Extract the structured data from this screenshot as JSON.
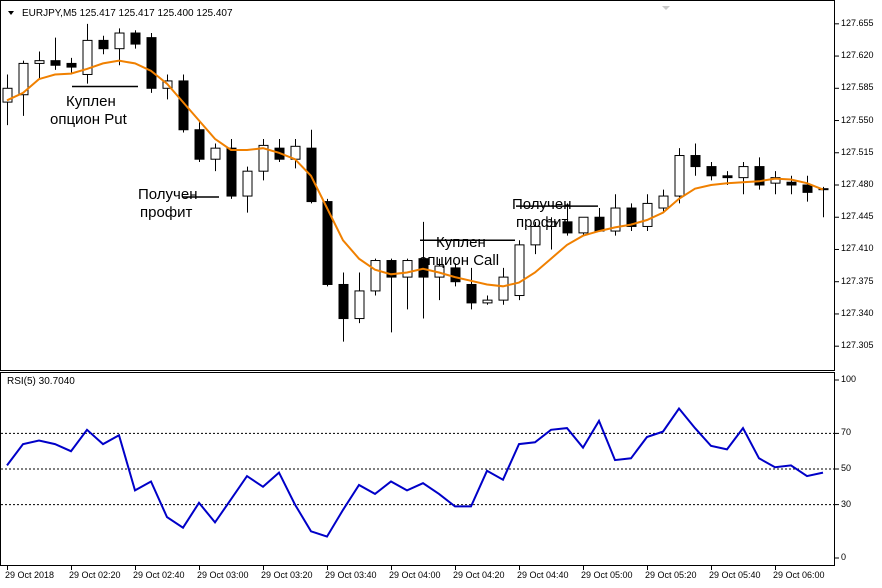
{
  "window": {
    "symbol_bar": "EURJPY,M5  125.417 125.417 125.400 125.407",
    "rsi_bar": "RSI(5) 30.7040"
  },
  "annotations": {
    "put_line1": "Куплен",
    "put_line2": "опцион Put",
    "tp1_line1": "Получен",
    "tp1_line2": "профит",
    "call_line1": "Куплен",
    "call_line2": "опцион Call",
    "tp2_line1": "Получен",
    "tp2_line2": "профит"
  },
  "colors": {
    "ma_line": "#f08000",
    "rsi_line": "#0000c8",
    "bull_body": "#ffffff",
    "bear_body": "#000000",
    "frame": "#000000",
    "levels": "#000000"
  },
  "chart_data": [
    {
      "type": "candlestick",
      "title": "EURJPY,M5",
      "ylim": [
        127.29,
        127.67
      ],
      "yticks": [
        "127.655",
        "127.620",
        "127.585",
        "127.550",
        "127.515",
        "127.480",
        "127.445",
        "127.410",
        "127.375",
        "127.340",
        "127.305"
      ],
      "xticks": [
        "29 Oct 2018",
        "29 Oct 02:20",
        "29 Oct 02:40",
        "29 Oct 03:00",
        "29 Oct 03:20",
        "29 Oct 03:40",
        "29 Oct 04:00",
        "29 Oct 04:20",
        "29 Oct 04:40",
        "29 Oct 05:00",
        "29 Oct 05:20",
        "29 Oct 05:40",
        "29 Oct 06:00"
      ],
      "grid": false,
      "candles": [
        {
          "o": 127.57,
          "h": 127.6,
          "l": 127.545,
          "c": 127.585
        },
        {
          "o": 127.578,
          "h": 127.615,
          "l": 127.555,
          "c": 127.612
        },
        {
          "o": 127.612,
          "h": 127.625,
          "l": 127.595,
          "c": 127.615
        },
        {
          "o": 127.615,
          "h": 127.64,
          "l": 127.605,
          "c": 127.61
        },
        {
          "o": 127.612,
          "h": 127.618,
          "l": 127.6,
          "c": 127.608
        },
        {
          "o": 127.6,
          "h": 127.655,
          "l": 127.59,
          "c": 127.637
        },
        {
          "o": 127.637,
          "h": 127.642,
          "l": 127.622,
          "c": 127.628
        },
        {
          "o": 127.628,
          "h": 127.65,
          "l": 127.61,
          "c": 127.645
        },
        {
          "o": 127.645,
          "h": 127.648,
          "l": 127.628,
          "c": 127.633
        },
        {
          "o": 127.64,
          "h": 127.645,
          "l": 127.58,
          "c": 127.585
        },
        {
          "o": 127.585,
          "h": 127.6,
          "l": 127.573,
          "c": 127.593
        },
        {
          "o": 127.593,
          "h": 127.6,
          "l": 127.537,
          "c": 127.54
        },
        {
          "o": 127.54,
          "h": 127.55,
          "l": 127.505,
          "c": 127.508
        },
        {
          "o": 127.508,
          "h": 127.525,
          "l": 127.495,
          "c": 127.52
        },
        {
          "o": 127.52,
          "h": 127.53,
          "l": 127.465,
          "c": 127.468
        },
        {
          "o": 127.468,
          "h": 127.5,
          "l": 127.45,
          "c": 127.495
        },
        {
          "o": 127.495,
          "h": 127.53,
          "l": 127.485,
          "c": 127.523
        },
        {
          "o": 127.52,
          "h": 127.53,
          "l": 127.505,
          "c": 127.508
        },
        {
          "o": 127.508,
          "h": 127.53,
          "l": 127.498,
          "c": 127.522
        },
        {
          "o": 127.52,
          "h": 127.54,
          "l": 127.46,
          "c": 127.462
        },
        {
          "o": 127.462,
          "h": 127.465,
          "l": 127.37,
          "c": 127.372
        },
        {
          "o": 127.372,
          "h": 127.385,
          "l": 127.31,
          "c": 127.335
        },
        {
          "o": 127.335,
          "h": 127.385,
          "l": 127.33,
          "c": 127.365
        },
        {
          "o": 127.365,
          "h": 127.4,
          "l": 127.36,
          "c": 127.398
        },
        {
          "o": 127.398,
          "h": 127.4,
          "l": 127.32,
          "c": 127.38
        },
        {
          "o": 127.38,
          "h": 127.4,
          "l": 127.345,
          "c": 127.398
        },
        {
          "o": 127.4,
          "h": 127.44,
          "l": 127.335,
          "c": 127.38
        },
        {
          "o": 127.38,
          "h": 127.4,
          "l": 127.355,
          "c": 127.392
        },
        {
          "o": 127.39,
          "h": 127.395,
          "l": 127.37,
          "c": 127.375
        },
        {
          "o": 127.372,
          "h": 127.39,
          "l": 127.345,
          "c": 127.352
        },
        {
          "o": 127.352,
          "h": 127.36,
          "l": 127.35,
          "c": 127.355
        },
        {
          "o": 127.355,
          "h": 127.39,
          "l": 127.35,
          "c": 127.38
        },
        {
          "o": 127.36,
          "h": 127.42,
          "l": 127.355,
          "c": 127.415
        },
        {
          "o": 127.415,
          "h": 127.44,
          "l": 127.405,
          "c": 127.435
        },
        {
          "o": 127.435,
          "h": 127.445,
          "l": 127.41,
          "c": 127.44
        },
        {
          "o": 127.44,
          "h": 127.46,
          "l": 127.425,
          "c": 127.428
        },
        {
          "o": 127.428,
          "h": 127.445,
          "l": 127.425,
          "c": 127.445
        },
        {
          "o": 127.445,
          "h": 127.455,
          "l": 127.43,
          "c": 127.43
        },
        {
          "o": 127.43,
          "h": 127.47,
          "l": 127.425,
          "c": 127.455
        },
        {
          "o": 127.455,
          "h": 127.46,
          "l": 127.43,
          "c": 127.435
        },
        {
          "o": 127.435,
          "h": 127.47,
          "l": 127.43,
          "c": 127.46
        },
        {
          "o": 127.455,
          "h": 127.475,
          "l": 127.45,
          "c": 127.468
        },
        {
          "o": 127.468,
          "h": 127.52,
          "l": 127.46,
          "c": 127.512
        },
        {
          "o": 127.512,
          "h": 127.525,
          "l": 127.49,
          "c": 127.5
        },
        {
          "o": 127.5,
          "h": 127.505,
          "l": 127.485,
          "c": 127.49
        },
        {
          "o": 127.49,
          "h": 127.495,
          "l": 127.48,
          "c": 127.488
        },
        {
          "o": 127.488,
          "h": 127.505,
          "l": 127.47,
          "c": 127.5
        },
        {
          "o": 127.5,
          "h": 127.51,
          "l": 127.475,
          "c": 127.48
        },
        {
          "o": 127.482,
          "h": 127.495,
          "l": 127.47,
          "c": 127.488
        },
        {
          "o": 127.483,
          "h": 127.49,
          "l": 127.47,
          "c": 127.48
        },
        {
          "o": 127.48,
          "h": 127.49,
          "l": 127.462,
          "c": 127.472
        },
        {
          "o": 127.475,
          "h": 127.478,
          "l": 127.445,
          "c": 127.476
        }
      ],
      "ma": [
        127.572,
        127.58,
        127.595,
        127.6,
        127.601,
        127.606,
        127.612,
        127.615,
        127.612,
        127.604,
        127.59,
        127.57,
        127.55,
        127.53,
        127.518,
        127.518,
        127.52,
        127.515,
        127.508,
        127.49,
        127.455,
        127.42,
        127.4,
        127.388,
        127.383,
        127.385,
        127.389,
        127.385,
        127.38,
        127.376,
        127.372,
        127.37,
        127.374,
        127.385,
        127.4,
        127.415,
        127.425,
        127.43,
        127.434,
        127.437,
        127.442,
        127.45,
        127.465,
        127.476,
        127.48,
        127.482,
        127.483,
        127.484,
        127.487,
        127.486,
        127.482,
        127.475
      ]
    },
    {
      "type": "line",
      "title": "RSI(5) 30.7040",
      "ylim": [
        0,
        100
      ],
      "yticks": [
        "100",
        "70",
        "50",
        "30",
        "0"
      ],
      "levels": [
        70,
        50,
        30
      ],
      "series": [
        {
          "values": [
            52,
            64,
            66,
            64,
            60,
            72,
            64,
            69,
            38,
            43,
            23,
            17,
            31,
            20,
            33,
            46,
            40,
            48,
            30,
            15,
            12,
            27,
            41,
            36,
            43,
            38,
            42,
            36,
            29,
            29,
            49,
            44,
            64,
            65,
            72,
            73,
            62,
            77,
            55,
            56,
            68,
            71,
            84,
            73,
            63,
            61,
            73,
            56,
            51,
            52,
            46,
            48
          ]
        }
      ]
    }
  ]
}
